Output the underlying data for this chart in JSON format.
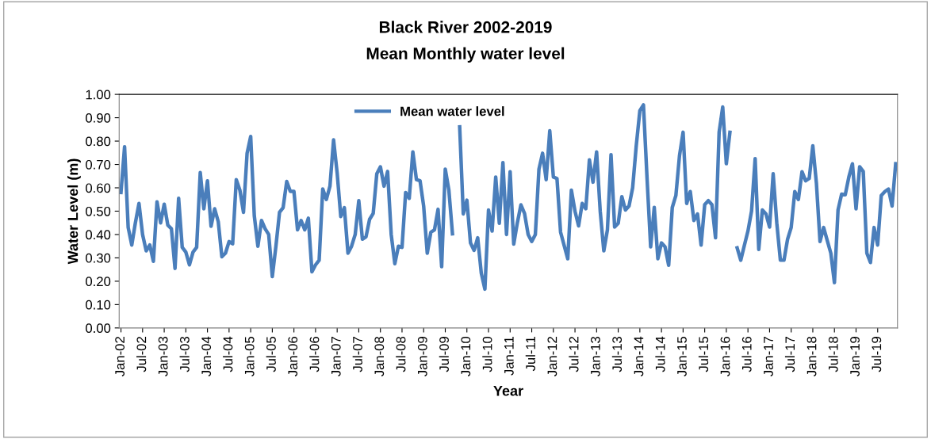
{
  "chart_data": {
    "type": "line",
    "title": "Black River 2002-2019",
    "subtitle": "Mean Monthly water level",
    "xlabel": "Year",
    "ylabel": "Water Level (m)",
    "categories": [
      "Jan-02",
      null,
      null,
      null,
      null,
      null,
      "Jul-02",
      null,
      null,
      null,
      null,
      null,
      "Jan-03",
      null,
      null,
      null,
      null,
      null,
      "Jul-03",
      null,
      null,
      null,
      null,
      null,
      "Jan-04",
      null,
      null,
      null,
      null,
      null,
      "Jul-04",
      null,
      null,
      null,
      null,
      null,
      "Jan-05",
      null,
      null,
      null,
      null,
      null,
      "Jul-05",
      null,
      null,
      null,
      null,
      null,
      "Jan-06",
      null,
      null,
      null,
      null,
      null,
      "Jul-06",
      null,
      null,
      null,
      null,
      null,
      "Jan-07",
      null,
      null,
      null,
      null,
      null,
      "Jul-07",
      null,
      null,
      null,
      null,
      null,
      "Jan-08",
      null,
      null,
      null,
      null,
      null,
      "Jul-08",
      null,
      null,
      null,
      null,
      null,
      "Jan-09",
      null,
      null,
      null,
      null,
      null,
      "Jul-09",
      null,
      null,
      null,
      null,
      null,
      "Jan-10",
      null,
      null,
      null,
      null,
      null,
      "Jul-10",
      null,
      null,
      null,
      null,
      null,
      "Jan-11",
      null,
      null,
      null,
      null,
      null,
      "Jul-11",
      null,
      null,
      null,
      null,
      null,
      "Jan-12",
      null,
      null,
      null,
      null,
      null,
      "Jul-12",
      null,
      null,
      null,
      null,
      null,
      "Jan-13",
      null,
      null,
      null,
      null,
      null,
      "Jul-13",
      null,
      null,
      null,
      null,
      null,
      "Jan-14",
      null,
      null,
      null,
      null,
      null,
      "Jul-14",
      null,
      null,
      null,
      null,
      null,
      "Jan-15",
      null,
      null,
      null,
      null,
      null,
      "Jul-15",
      null,
      null,
      null,
      null,
      null,
      "Jan-16",
      null,
      null,
      null,
      null,
      null,
      "Jul-16",
      null,
      null,
      null,
      null,
      null,
      "Jan-17",
      null,
      null,
      null,
      null,
      null,
      "Jul-17",
      null,
      null,
      null,
      null,
      null,
      "Jan-18",
      null,
      null,
      null,
      null,
      null,
      "Jul-18",
      null,
      null,
      null,
      null,
      null,
      "Jan-19",
      null,
      null,
      null,
      null,
      null,
      "Jul-19",
      null,
      null,
      null,
      null,
      null
    ],
    "series": [
      {
        "name": "Mean water level",
        "color": "#4a7ebb",
        "values": [
          0.58,
          0.776,
          0.43,
          0.355,
          0.45,
          0.533,
          0.4,
          0.33,
          0.355,
          0.285,
          0.54,
          0.45,
          0.53,
          0.44,
          0.425,
          0.255,
          0.555,
          0.345,
          0.325,
          0.27,
          0.325,
          0.345,
          0.665,
          0.51,
          0.63,
          0.435,
          0.51,
          0.455,
          0.305,
          0.32,
          0.37,
          0.36,
          0.635,
          0.59,
          0.495,
          0.748,
          0.82,
          0.48,
          0.35,
          0.46,
          0.425,
          0.4,
          0.22,
          0.35,
          0.495,
          0.515,
          0.627,
          0.585,
          0.585,
          0.42,
          0.46,
          0.42,
          0.47,
          0.24,
          0.27,
          0.29,
          0.595,
          0.55,
          0.607,
          0.805,
          0.663,
          0.477,
          0.515,
          0.32,
          0.35,
          0.4,
          0.545,
          0.38,
          0.39,
          0.465,
          0.49,
          0.66,
          0.69,
          0.607,
          0.67,
          0.4,
          0.275,
          0.35,
          0.345,
          0.58,
          0.555,
          0.754,
          0.635,
          0.63,
          0.522,
          0.32,
          0.41,
          0.42,
          0.508,
          0.262,
          0.68,
          0.59,
          0.403,
          null,
          0.861,
          0.488,
          0.547,
          0.364,
          0.332,
          0.386,
          0.234,
          0.166,
          0.505,
          0.415,
          0.646,
          0.448,
          0.708,
          0.4,
          0.669,
          0.359,
          0.45,
          0.527,
          0.49,
          0.4,
          0.37,
          0.4,
          0.68,
          0.748,
          0.635,
          0.844,
          0.646,
          0.64,
          0.41,
          0.353,
          0.296,
          0.59,
          0.5,
          0.437,
          0.533,
          0.51,
          0.72,
          0.624,
          0.754,
          0.5,
          0.33,
          0.42,
          0.742,
          0.432,
          0.448,
          0.562,
          0.505,
          0.522,
          0.6,
          0.78,
          0.93,
          0.955,
          0.64,
          0.347,
          0.516,
          0.296,
          0.364,
          0.347,
          0.268,
          0.516,
          0.567,
          0.737,
          0.838,
          0.533,
          0.584,
          0.46,
          0.488,
          0.355,
          0.528,
          0.545,
          0.528,
          0.386,
          0.838,
          0.946,
          0.703,
          0.838,
          null,
          0.343,
          0.29,
          0.353,
          0.415,
          0.5,
          0.725,
          0.336,
          0.505,
          0.488,
          0.432,
          0.66,
          0.45,
          0.29,
          0.29,
          0.38,
          0.43,
          0.584,
          0.55,
          0.669,
          0.63,
          0.64,
          0.78,
          0.62,
          0.37,
          0.43,
          0.375,
          0.32,
          0.194,
          0.505,
          0.573,
          0.57,
          0.646,
          0.703,
          0.51,
          0.69,
          0.67,
          0.32,
          0.28,
          0.43,
          0.355,
          0.567,
          0.584,
          0.595,
          0.522,
          0.703
        ]
      }
    ],
    "ylim": [
      0,
      1
    ],
    "yticks": [
      {
        "value": 0,
        "label": "0.00"
      },
      {
        "value": 0.1,
        "label": "0.10"
      },
      {
        "value": 0.2,
        "label": "0.20"
      },
      {
        "value": 0.3,
        "label": "0.30"
      },
      {
        "value": 0.4,
        "label": "0.40"
      },
      {
        "value": 0.5,
        "label": "0.50"
      },
      {
        "value": 0.6,
        "label": "0.60"
      },
      {
        "value": 0.7,
        "label": "0.70"
      },
      {
        "value": 0.8,
        "label": "0.80"
      },
      {
        "value": 0.9,
        "label": "0.90"
      },
      {
        "value": 1.0,
        "label": "1.00"
      }
    ],
    "grid": false,
    "legend": "top",
    "marker": "none",
    "line_style": "solid"
  }
}
